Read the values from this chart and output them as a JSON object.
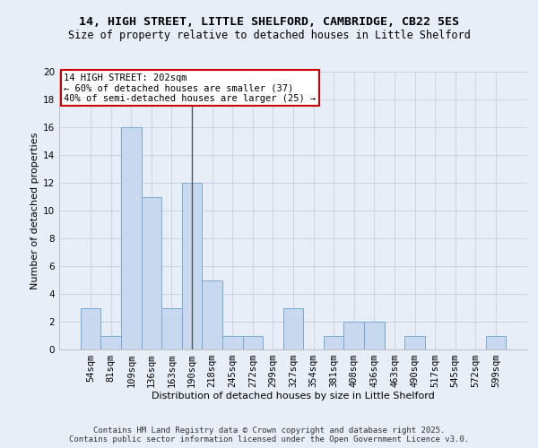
{
  "title_line1": "14, HIGH STREET, LITTLE SHELFORD, CAMBRIDGE, CB22 5ES",
  "title_line2": "Size of property relative to detached houses in Little Shelford",
  "xlabel": "Distribution of detached houses by size in Little Shelford",
  "ylabel": "Number of detached properties",
  "footer_line1": "Contains HM Land Registry data © Crown copyright and database right 2025.",
  "footer_line2": "Contains public sector information licensed under the Open Government Licence v3.0.",
  "annotation_title": "14 HIGH STREET: 202sqm",
  "annotation_line2": "← 60% of detached houses are smaller (37)",
  "annotation_line3": "40% of semi-detached houses are larger (25) →",
  "bar_color": "#c8d8ee",
  "bar_edge_color": "#7aaad0",
  "vline_color": "#555555",
  "annotation_box_color": "#ffffff",
  "annotation_box_edge": "#cc0000",
  "background_color": "#e8eef8",
  "categories": [
    "54sqm",
    "81sqm",
    "109sqm",
    "136sqm",
    "163sqm",
    "190sqm",
    "218sqm",
    "245sqm",
    "272sqm",
    "299sqm",
    "327sqm",
    "354sqm",
    "381sqm",
    "408sqm",
    "436sqm",
    "463sqm",
    "490sqm",
    "517sqm",
    "545sqm",
    "572sqm",
    "599sqm"
  ],
  "values": [
    3,
    1,
    16,
    11,
    3,
    12,
    5,
    1,
    1,
    0,
    3,
    0,
    1,
    2,
    2,
    0,
    1,
    0,
    0,
    0,
    1
  ],
  "vline_position": 5,
  "ylim": [
    0,
    20
  ],
  "yticks": [
    0,
    2,
    4,
    6,
    8,
    10,
    12,
    14,
    16,
    18,
    20
  ],
  "grid_color": "#c0c8d8",
  "title_fontsize": 9.5,
  "subtitle_fontsize": 8.5,
  "xlabel_fontsize": 8,
  "ylabel_fontsize": 8,
  "tick_fontsize": 7.5,
  "footer_fontsize": 6.5,
  "annotation_fontsize": 7.5
}
